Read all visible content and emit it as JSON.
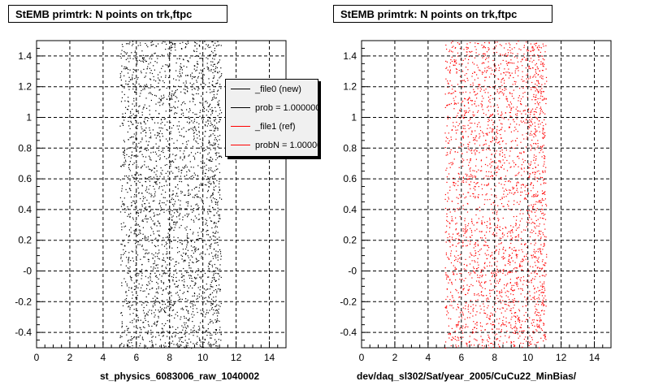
{
  "footer_stamp": "",
  "charts": [
    {
      "title": "StEMB primtrk: N points on trk,ftpc",
      "xlabel": "st_physics_6083006_raw_1040002"
    },
    {
      "title": "StEMB primtrk: N points on trk,ftpc",
      "xlabel": "dev/daq_sl302/Sat/year_2005/CuCu22_MinBias/"
    }
  ],
  "legend": {
    "entries": [
      {
        "label": "_file0 (new)",
        "color": "#000000"
      },
      {
        "label": "prob = 1.000000",
        "color": "#000000"
      },
      {
        "label": "_file1 (ref)",
        "color": "#ff0000"
      },
      {
        "label": "probN = 1.000000",
        "color": "#ff0000"
      }
    ]
  },
  "chart_data": [
    {
      "type": "scatter",
      "title": "StEMB primtrk: N points on trk,ftpc",
      "xlabel": "st_physics_6083006_raw_1040002",
      "ylabel": "",
      "xlim": [
        0,
        15
      ],
      "ylim": [
        -0.5,
        1.5
      ],
      "xticks": [
        "0",
        "2",
        "4",
        "6",
        "8",
        "10",
        "12",
        "14"
      ],
      "yticks": [
        "-0.4",
        "-0.2",
        "-0",
        "0.2",
        "0.4",
        "0.6",
        "0.8",
        "1",
        "1.2",
        "1.4"
      ],
      "grid": true,
      "marker_color": "#000000",
      "x_extent": [
        5,
        11
      ],
      "point_density": "dense uniform band between x=5 and x=11",
      "series_names": [
        "_file0 (new)",
        "_file1 (ref)"
      ]
    },
    {
      "type": "scatter",
      "title": "StEMB primtrk: N points on trk,ftpc",
      "xlabel": "dev/daq_sl302/Sat/year_2005/CuCu22_MinBias/",
      "ylabel": "",
      "xlim": [
        0,
        15
      ],
      "ylim": [
        -0.5,
        1.5
      ],
      "xticks": [
        "0",
        "2",
        "4",
        "6",
        "8",
        "10",
        "12",
        "14"
      ],
      "yticks": [
        "-0.4",
        "-0.2",
        "-0",
        "0.2",
        "0.4",
        "0.6",
        "0.8",
        "1",
        "1.2",
        "1.4"
      ],
      "grid": true,
      "marker_color": "#ff0000",
      "x_extent": [
        5,
        11
      ],
      "point_density": "dense uniform band between x=5 and x=11"
    }
  ]
}
